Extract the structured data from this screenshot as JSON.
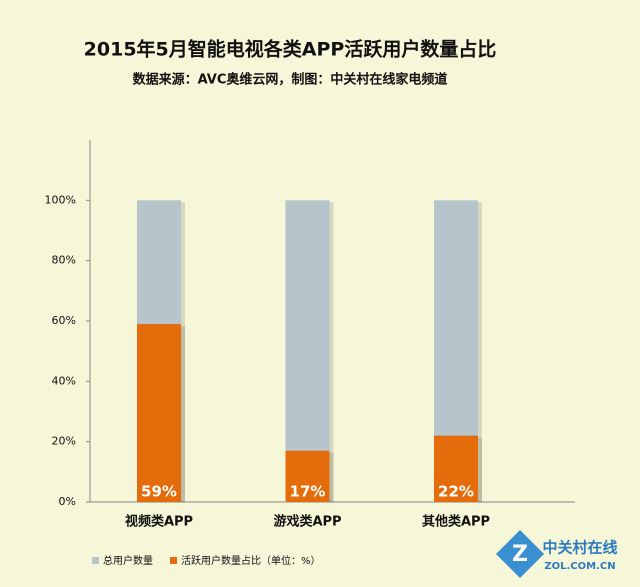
{
  "chart_data": {
    "type": "overlap-bar",
    "title": "2015年5月智能电视各类APP活跃用户数量占比",
    "subtitle": "数据来源：AVC奥维云网，制图：中关村在线家电频道",
    "categories": [
      "视频类APP",
      "游戏类APP",
      "其他类APP"
    ],
    "series": [
      {
        "name": "总用户数量",
        "color": "#b5c5cb",
        "values": [
          100,
          100,
          100
        ]
      },
      {
        "name": "活跃用户数量占比（单位：%）",
        "color": "#e46c0a",
        "values": [
          59,
          17,
          22
        ],
        "value_labels": [
          "59%",
          "17%",
          "22%"
        ]
      }
    ],
    "ylim": [
      0,
      120
    ],
    "yticks": [
      {
        "value": 0,
        "label": "0%"
      },
      {
        "value": 20,
        "label": "20%"
      },
      {
        "value": 40,
        "label": "40%"
      },
      {
        "value": 60,
        "label": "60%"
      },
      {
        "value": 80,
        "label": "80%"
      },
      {
        "value": 100,
        "label": "100%"
      }
    ],
    "grid": false,
    "legend": "bottom-left"
  },
  "watermark": {
    "name": "中关村在线",
    "site": "ZOL.COM.CN"
  }
}
